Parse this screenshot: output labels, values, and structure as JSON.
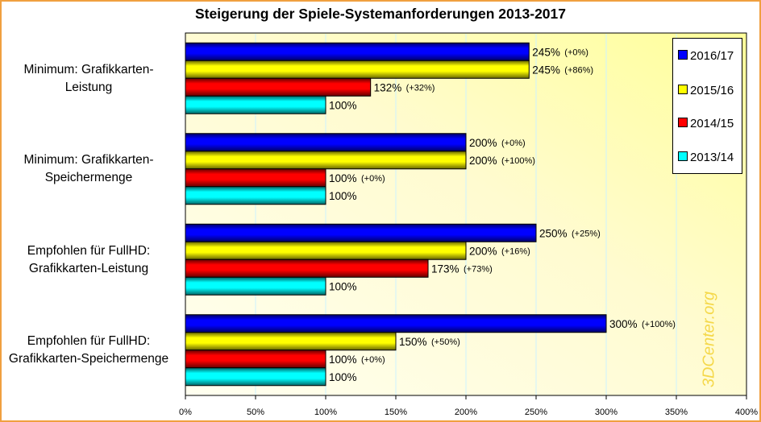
{
  "chart_data": {
    "type": "bar",
    "orientation": "horizontal",
    "title": "Steigerung der Spiele-Systemanforderungen 2013-2017",
    "xlabel": "",
    "ylabel": "",
    "xlim": [
      0,
      400
    ],
    "x_ticks": [
      "0%",
      "50%",
      "100%",
      "150%",
      "200%",
      "250%",
      "300%",
      "350%",
      "400%"
    ],
    "grid": true,
    "legend_position": "top-right",
    "categories": [
      [
        "Minimum: Grafikkarten-",
        "Leistung"
      ],
      [
        "Minimum: Grafikkarten-",
        "Speichermenge"
      ],
      [
        "Empfohlen für FullHD:",
        "Grafikkarten-Leistung"
      ],
      [
        "Empfohlen für FullHD:",
        "Grafikkarten-Speichermenge"
      ]
    ],
    "series": [
      {
        "name": "2016/17",
        "color": "#0000ff",
        "values": [
          245,
          200,
          250,
          300
        ],
        "labels": [
          "245%",
          "200%",
          "250%",
          "300%"
        ],
        "deltas": [
          "(+0%)",
          "(+0%)",
          "(+25%)",
          "(+100%)"
        ]
      },
      {
        "name": "2015/16",
        "color": "#ffff00",
        "values": [
          245,
          200,
          200,
          150
        ],
        "labels": [
          "245%",
          "200%",
          "200%",
          "150%"
        ],
        "deltas": [
          "(+86%)",
          "(+100%)",
          "(+16%)",
          "(+50%)"
        ]
      },
      {
        "name": "2014/15",
        "color": "#ff0000",
        "values": [
          132,
          100,
          173,
          100
        ],
        "labels": [
          "132%",
          "100%",
          "173%",
          "100%"
        ],
        "deltas": [
          "(+32%)",
          "(+0%)",
          "(+73%)",
          "(+0%)"
        ]
      },
      {
        "name": "2013/14",
        "color": "#00ffff",
        "values": [
          100,
          100,
          100,
          100
        ],
        "labels": [
          "100%",
          "100%",
          "100%",
          "100%"
        ],
        "deltas": [
          "",
          "",
          "",
          ""
        ]
      }
    ],
    "watermark": "3DCenter.org"
  }
}
